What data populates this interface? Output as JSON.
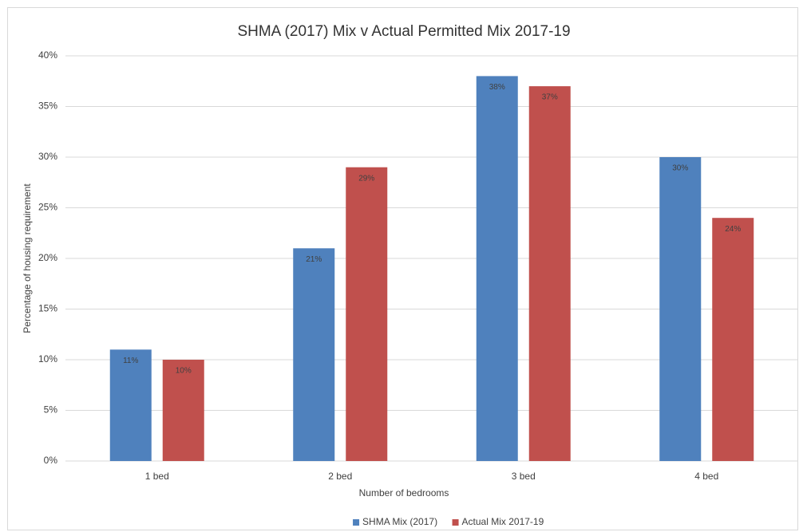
{
  "chart_data": {
    "type": "bar",
    "title": "SHMA (2017) Mix v Actual Permitted Mix 2017-19",
    "x_label": "Number of bedrooms",
    "y_label": "Percentage of housing requirement",
    "categories": [
      "1 bed",
      "2 bed",
      "3 bed",
      "4 bed"
    ],
    "series": [
      {
        "name": "SHMA Mix (2017)",
        "color": "#4f81bd",
        "values": [
          11,
          21,
          38,
          30
        ],
        "value_labels": [
          "11%",
          "21%",
          "38%",
          "30%"
        ]
      },
      {
        "name": "Actual Mix 2017-19",
        "color": "#c0504d",
        "values": [
          10,
          29,
          37,
          24
        ],
        "value_labels": [
          "10%",
          "29%",
          "37%",
          "24%"
        ]
      }
    ],
    "ylim": [
      0,
      40
    ],
    "yticks": [
      {
        "value": 0,
        "label": "0%"
      },
      {
        "value": 5,
        "label": "5%"
      },
      {
        "value": 10,
        "label": "10%"
      },
      {
        "value": 15,
        "label": "15%"
      },
      {
        "value": 20,
        "label": "20%"
      },
      {
        "value": 25,
        "label": "25%"
      },
      {
        "value": 30,
        "label": "30%"
      },
      {
        "value": 35,
        "label": "35%"
      },
      {
        "value": 40,
        "label": "40%"
      }
    ],
    "grid": true,
    "legend": "bottom"
  }
}
